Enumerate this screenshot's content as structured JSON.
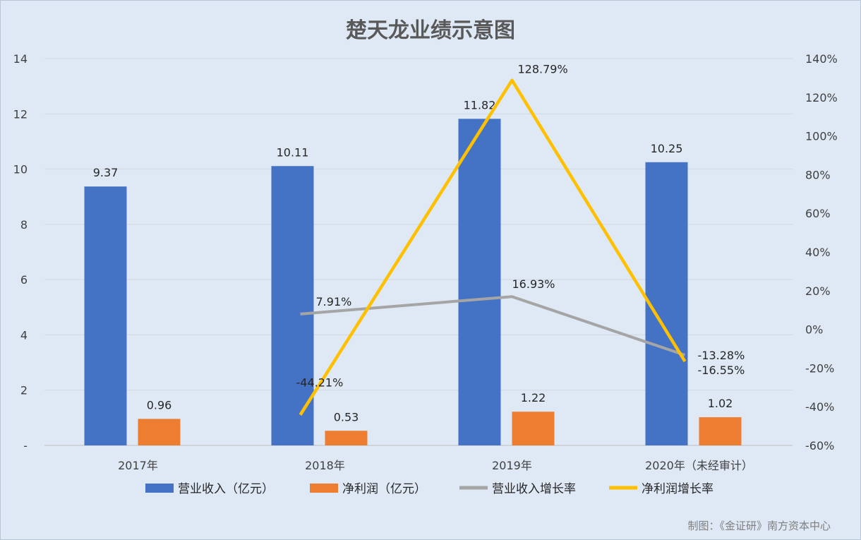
{
  "chart_data": {
    "type": "bar",
    "title": "楚天龙业绩示意图",
    "categories": [
      "2017年",
      "2018年",
      "2019年",
      "2020年（未经审计）"
    ],
    "series": [
      {
        "name": "营业收入（亿元）",
        "kind": "bar",
        "axis": "left",
        "color": "#4472c4",
        "values": [
          9.37,
          10.11,
          11.82,
          10.25
        ],
        "labels": [
          "9.37",
          "10.11",
          "11.82",
          "10.25"
        ]
      },
      {
        "name": "净利润（亿元）",
        "kind": "bar",
        "axis": "left",
        "color": "#ed7d31",
        "values": [
          0.96,
          0.53,
          1.22,
          1.02
        ],
        "labels": [
          "0.96",
          "0.53",
          "1.22",
          "1.02"
        ]
      },
      {
        "name": "营业收入增长率",
        "kind": "line",
        "axis": "right",
        "color": "#a5a5a5",
        "values": [
          null,
          7.91,
          16.93,
          -13.28
        ],
        "labels": [
          "",
          "7.91%",
          "16.93%",
          "-13.28%"
        ]
      },
      {
        "name": "净利润增长率",
        "kind": "line",
        "axis": "right",
        "color": "#ffc000",
        "values": [
          null,
          -44.21,
          128.79,
          -16.55
        ],
        "labels": [
          "",
          "-44.21%",
          "128.79%",
          "-16.55%"
        ]
      }
    ],
    "y_left": {
      "range": [
        0,
        14
      ],
      "ticks": [
        "-",
        "2",
        "4",
        "6",
        "8",
        "10",
        "12",
        "14"
      ]
    },
    "y_right": {
      "range": [
        -60,
        140
      ],
      "unit": "%",
      "ticks": [
        "-60%",
        "-40%",
        "-20%",
        "0%",
        "20%",
        "40%",
        "60%",
        "80%",
        "100%",
        "120%",
        "140%"
      ]
    },
    "grid": true,
    "legend_position": "bottom"
  },
  "credit": "制图：《金证研》南方资本中心"
}
